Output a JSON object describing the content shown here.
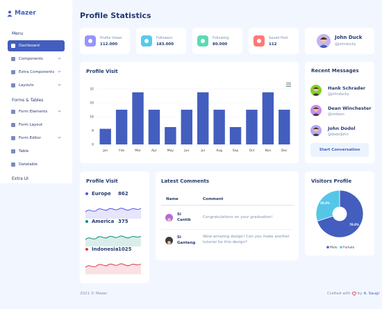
{
  "sidebar": {
    "brand": "Mazer",
    "menu_title": "Menu",
    "items": [
      {
        "label": "Dashboard",
        "name": "dashboard",
        "active": true
      },
      {
        "label": "Components",
        "name": "components",
        "chevron": true
      },
      {
        "label": "Extra Components",
        "name": "extra-components",
        "chevron": true
      },
      {
        "label": "Layouts",
        "name": "layouts",
        "chevron": true
      }
    ],
    "forms_title": "Forms & Tables",
    "form_items": [
      {
        "label": "Form Elements",
        "name": "form-elements",
        "chevron": true
      },
      {
        "label": "Form Layout",
        "name": "form-layout"
      },
      {
        "label": "Form Editor",
        "name": "form-editor",
        "chevron": true
      },
      {
        "label": "Table",
        "name": "table"
      },
      {
        "label": "Datatable",
        "name": "datatable"
      }
    ],
    "extra_title": "Extra UI"
  },
  "page": {
    "title": "Profile Statistics"
  },
  "stats": [
    {
      "label": "Profile Views",
      "value": "112.000",
      "color": "#9694ff",
      "icon": "eye-icon"
    },
    {
      "label": "Followers",
      "value": "183.000",
      "color": "#57caeb",
      "icon": "user-icon"
    },
    {
      "label": "Following",
      "value": "80.000",
      "color": "#5ddab4",
      "icon": "user-add-icon"
    },
    {
      "label": "Saved Post",
      "value": "112",
      "color": "#ff7976",
      "icon": "bookmark-icon"
    }
  ],
  "profile": {
    "name": "John Duck",
    "handle": "@johnducky"
  },
  "profile_visit_chart": {
    "title": "Profile Visit",
    "menu_icon": "hamburger-icon"
  },
  "chart_data": [
    {
      "type": "bar",
      "categories": [
        "Jan",
        "Feb",
        "Mar",
        "Apr",
        "May",
        "Jun",
        "Jul",
        "Aug",
        "Sep",
        "Oct",
        "Nov",
        "Dec"
      ],
      "values": [
        9,
        20,
        30,
        20,
        10,
        20,
        30,
        20,
        10,
        20,
        30,
        20
      ],
      "ylim": [
        0,
        32
      ],
      "yticks": [
        "0",
        "8",
        "16",
        "24",
        "32"
      ],
      "color": "#435ebe"
    },
    {
      "type": "pie",
      "title": "Visitors Profile",
      "series": [
        {
          "name": "Male",
          "value": 70.0,
          "label": "70.0%",
          "color": "#435ebe"
        },
        {
          "name": "Female",
          "value": 30.0,
          "label": "30.0%",
          "color": "#55c6e8"
        }
      ],
      "legend": "bottom"
    }
  ],
  "region_card": {
    "title": "Profile Visit",
    "rows": [
      {
        "country": "Europe",
        "value": "862",
        "color": "#5350e9"
      },
      {
        "country": "America",
        "value": "375",
        "color": "#008b75"
      },
      {
        "country": "Indonesia",
        "value": "1025",
        "color": "#dc3545"
      }
    ]
  },
  "comments": {
    "title": "Latest Comments",
    "headers": {
      "name": "Name",
      "comment": "Comment"
    },
    "rows": [
      {
        "name": "Si Cantik",
        "comment": "Congratulations on your graduation!"
      },
      {
        "name": "Si Ganteng",
        "comment": "Wow amazing design! Can you make another tutorial for this design?"
      }
    ]
  },
  "messages": {
    "title": "Recent Messages",
    "items": [
      {
        "name": "Hank Schrader",
        "handle": "@johnducky"
      },
      {
        "name": "Dean Winchester",
        "handle": "@imdean"
      },
      {
        "name": "John Dodol",
        "handle": "@dodoljohn"
      }
    ],
    "button": "Start Conversation"
  },
  "footer": {
    "left": "2021 © Mazer",
    "right_prefix": "Crafted with",
    "right_suffix": "by",
    "author": "A. Saugi"
  }
}
